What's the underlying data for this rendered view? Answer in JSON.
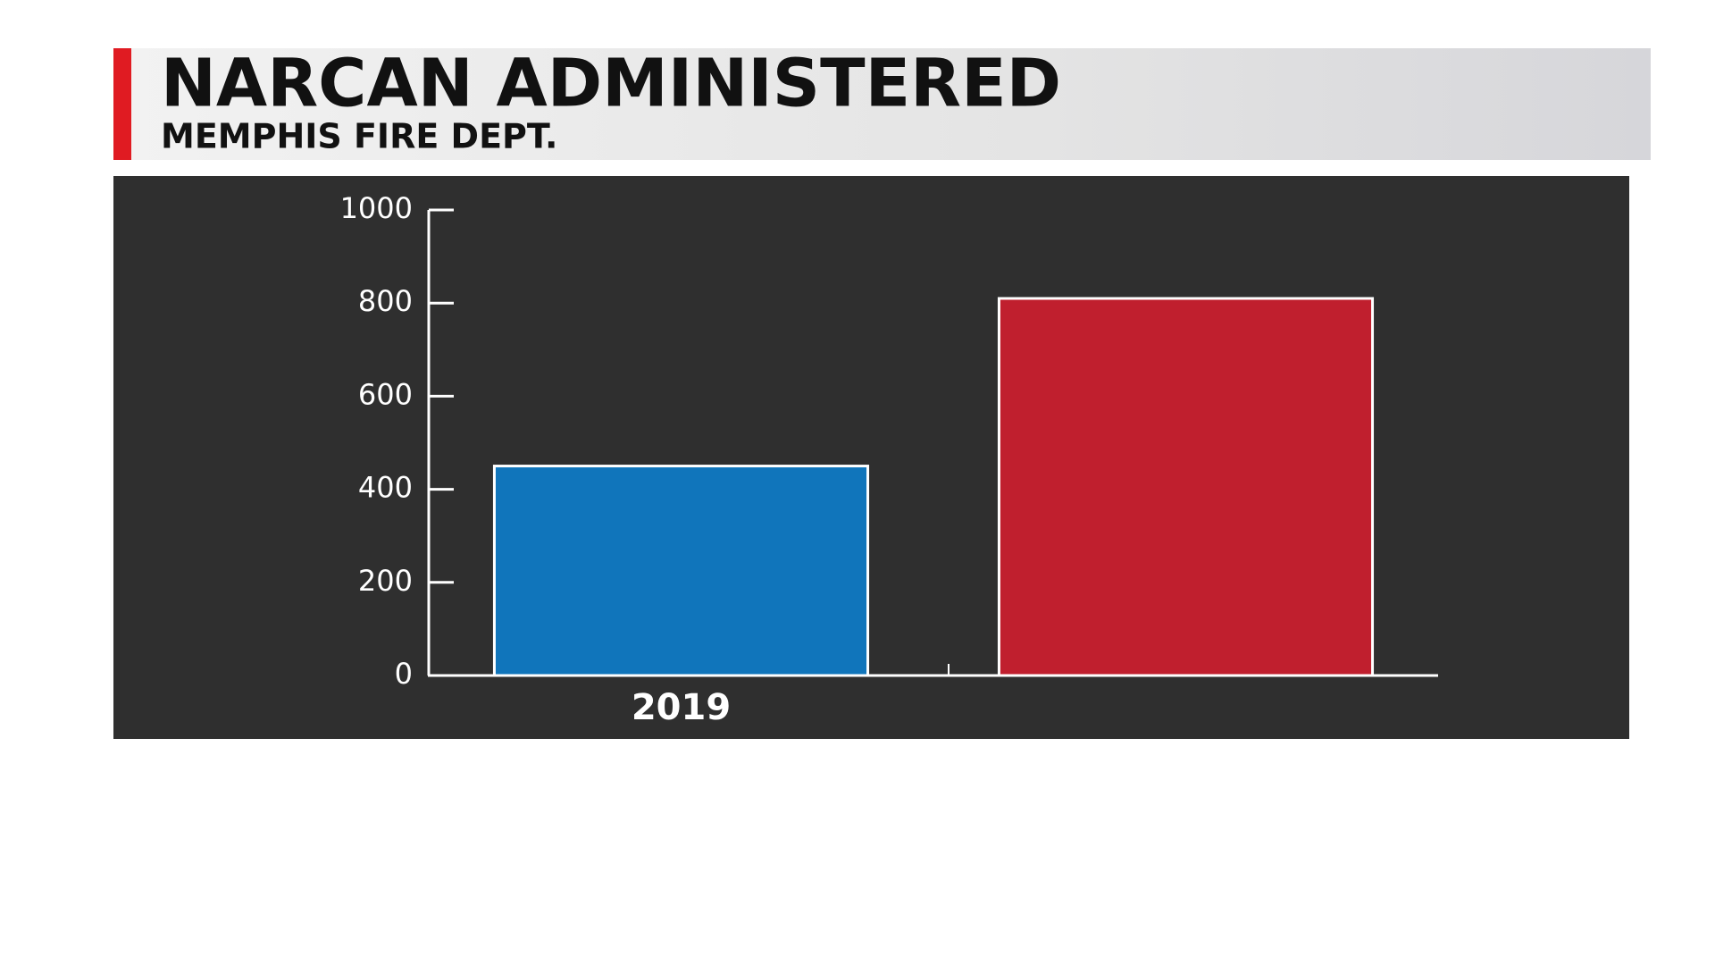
{
  "chart_data": {
    "type": "bar",
    "title": "NARCAN ADMINISTERED",
    "subtitle": "MEMPHIS FIRE DEPT.",
    "categories": [
      "2019",
      null
    ],
    "values": [
      450,
      810
    ],
    "colors": [
      "#1075bb",
      "#c01f2e"
    ],
    "ylim": [
      0,
      1000
    ],
    "yticks": [
      0,
      200,
      400,
      600,
      800,
      1000
    ],
    "grid": false
  }
}
